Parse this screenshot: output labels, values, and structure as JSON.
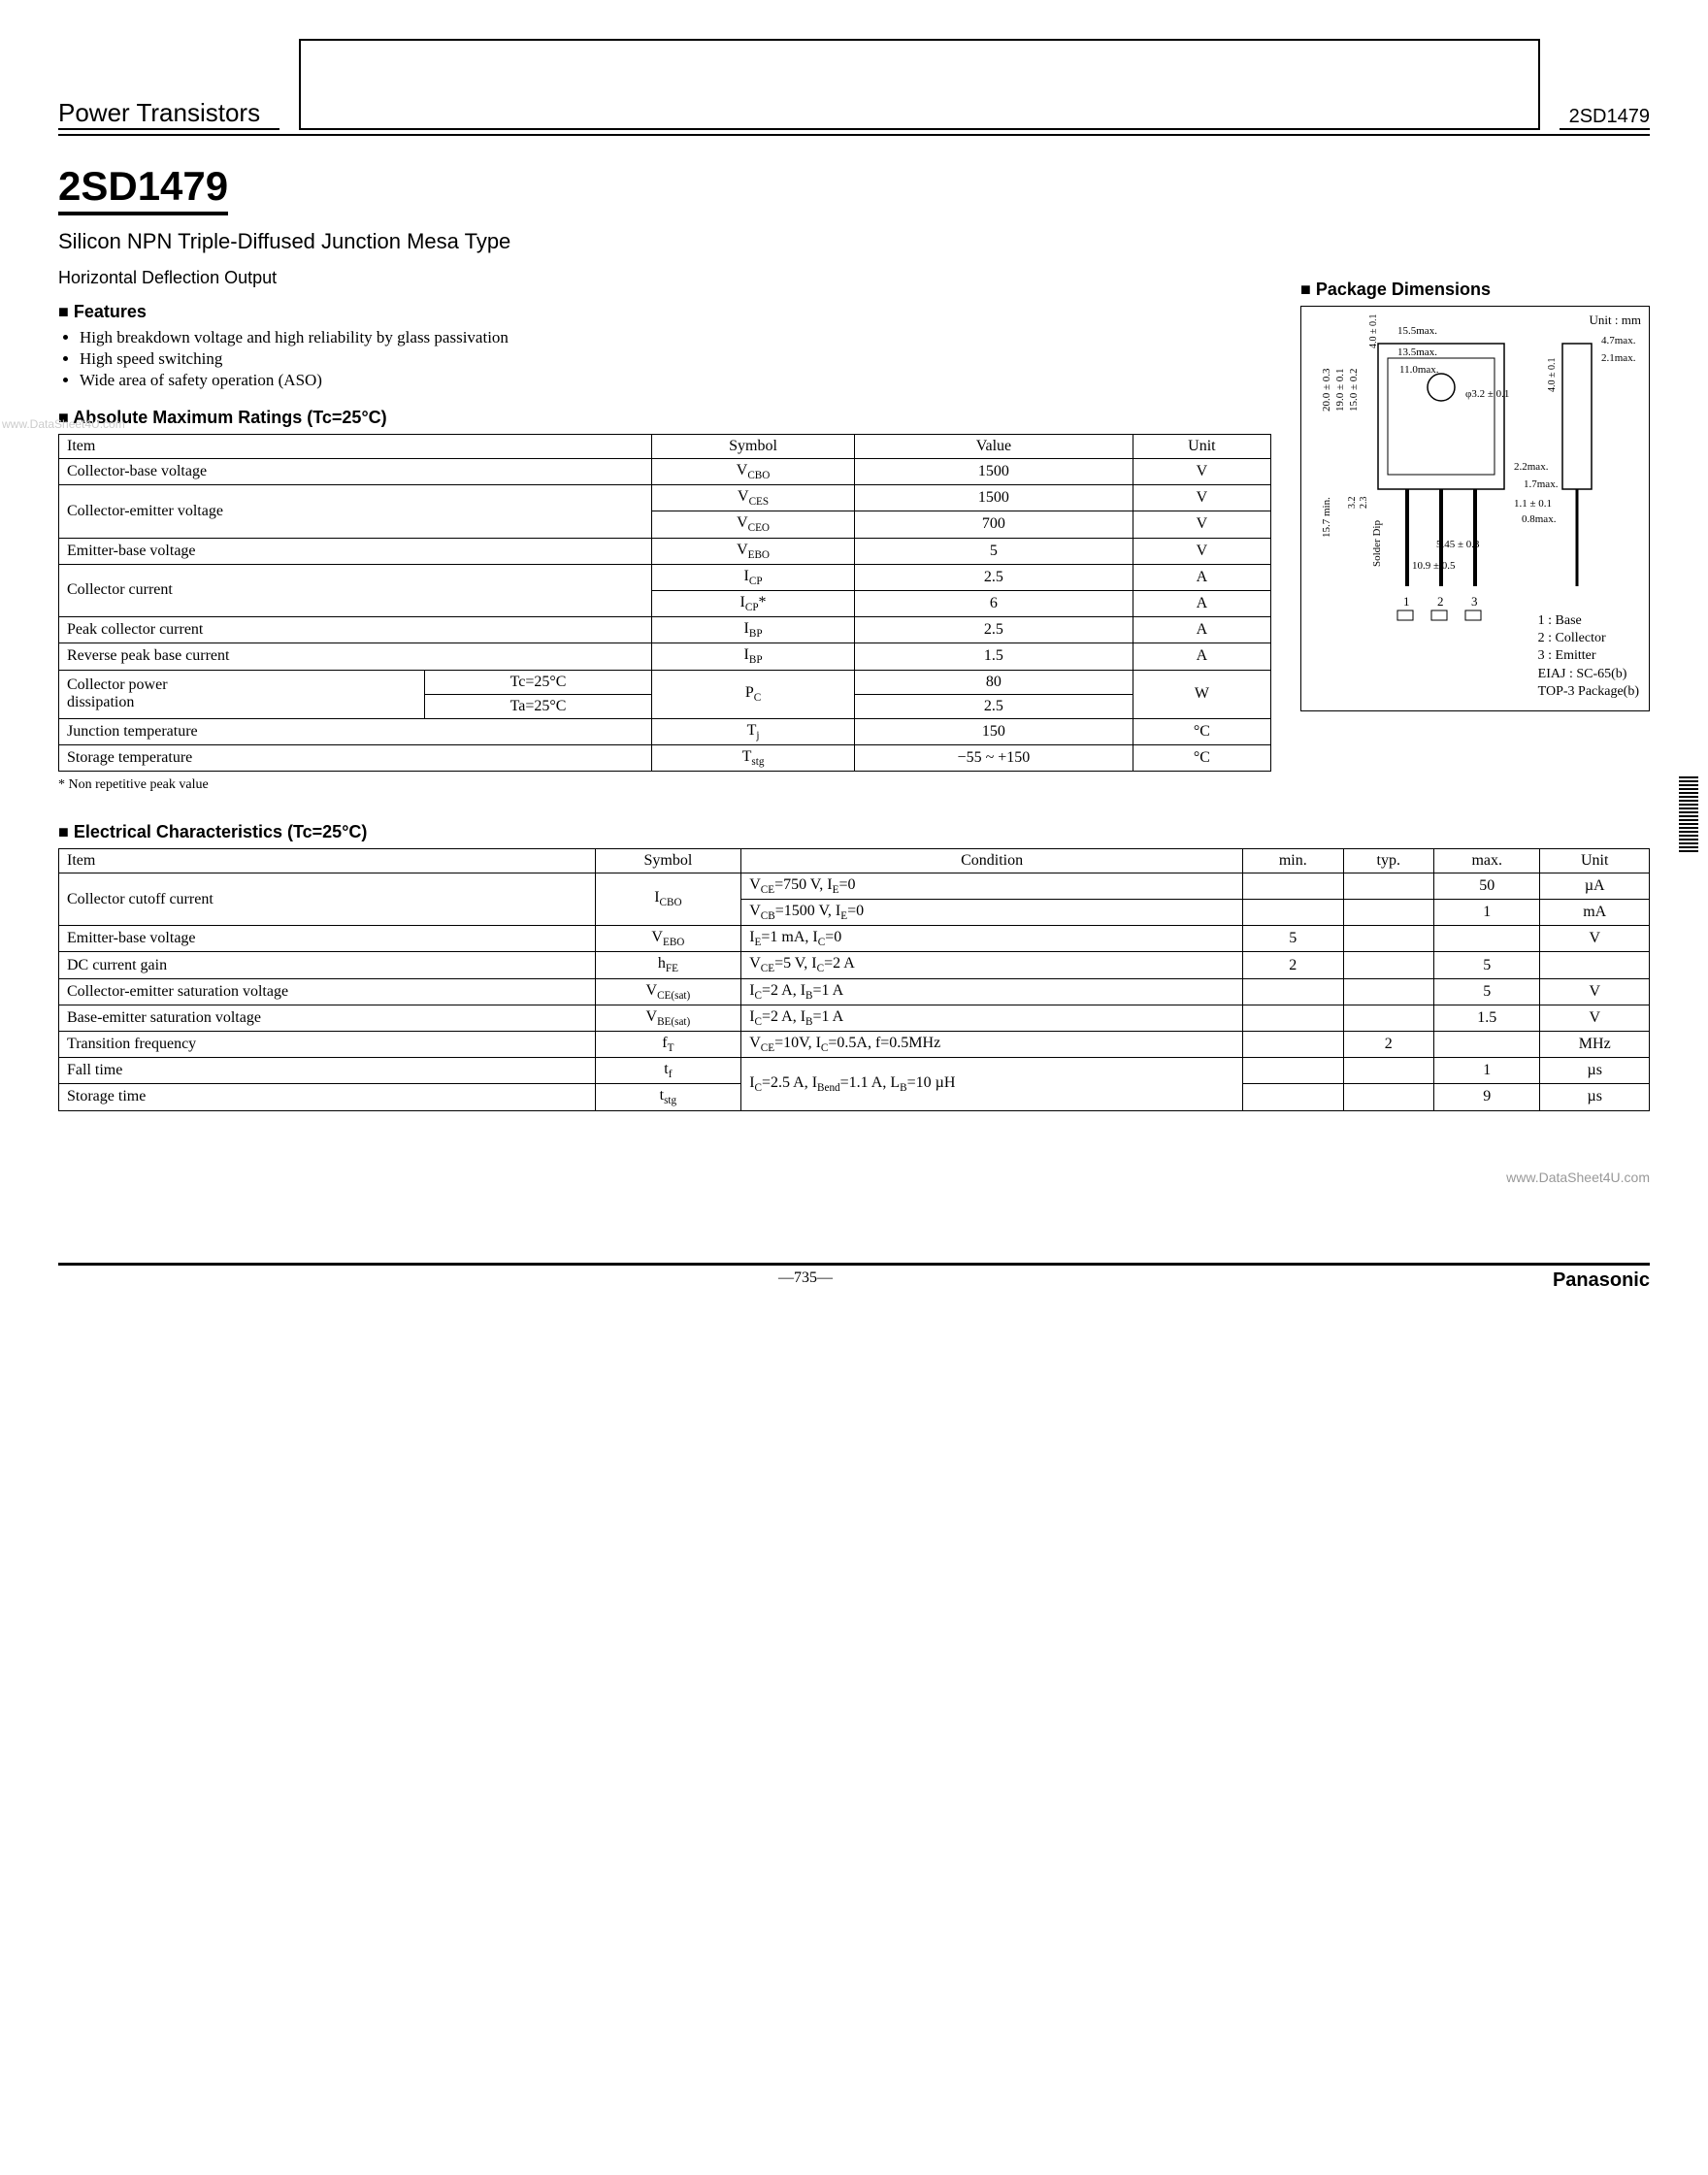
{
  "header": {
    "category": "Power Transistors",
    "part_right": "2SD1479"
  },
  "title": {
    "part_no": "2SD1479",
    "subtitle": "Silicon NPN Triple-Diffused Junction Mesa Type",
    "application": "Horizontal Deflection Output"
  },
  "features": {
    "heading": "Features",
    "items": [
      "High breakdown voltage and high reliability by glass passivation",
      "High speed switching",
      "Wide area of safety operation (ASO)"
    ]
  },
  "abs_max": {
    "heading": "Absolute Maximum Ratings (Tc=25°C)",
    "columns": [
      "Item",
      "Symbol",
      "Value",
      "Unit"
    ],
    "rows": [
      {
        "item": "Collector-base voltage",
        "symbol": "V<sub>CBO</sub>",
        "value": "1500",
        "unit": "V"
      },
      {
        "item": "Collector-emitter voltage",
        "symbol": "V<sub>CES</sub>",
        "value": "1500",
        "unit": "V"
      },
      {
        "item": "",
        "symbol": "V<sub>CEO</sub>",
        "value": "700",
        "unit": "V"
      },
      {
        "item": "Emitter-base voltage",
        "symbol": "V<sub>EBO</sub>",
        "value": "5",
        "unit": "V"
      },
      {
        "item": "Collector current",
        "symbol": "I<sub>CP</sub>",
        "value": "2.5",
        "unit": "A"
      },
      {
        "item": "",
        "symbol": "I<sub>CP</sub>*",
        "value": "6",
        "unit": "A"
      },
      {
        "item": "Peak collector current",
        "symbol": "I<sub>BP</sub>",
        "value": "2.5",
        "unit": "A"
      },
      {
        "item": "Reverse peak base current",
        "symbol": "I<sub>BP</sub>",
        "value": "1.5",
        "unit": "A"
      },
      {
        "item": "Collector power dissipation  Tc=25°C",
        "symbol": "P<sub>C</sub>",
        "value": "80",
        "unit": "W"
      },
      {
        "item": "Collector power dissipation  Ta=25°C",
        "symbol": "",
        "value": "2.5",
        "unit": ""
      },
      {
        "item": "Junction temperature",
        "symbol": "T<sub>j</sub>",
        "value": "150",
        "unit": "°C"
      },
      {
        "item": "Storage temperature",
        "symbol": "T<sub>stg</sub>",
        "value": "−55 ~ +150",
        "unit": "°C"
      }
    ],
    "footnote": "* Non repetitive peak value"
  },
  "elec": {
    "heading": "Electrical Characteristics (Tc=25°C)",
    "columns": [
      "Item",
      "Symbol",
      "Condition",
      "min.",
      "typ.",
      "max.",
      "Unit"
    ],
    "rows": [
      {
        "item": "Collector cutoff current",
        "symbol": "I<sub>CBO</sub>",
        "cond": "V<sub>CE</sub>=750 V,  I<sub>E</sub>=0",
        "min": "",
        "typ": "",
        "max": "50",
        "unit": "µA"
      },
      {
        "item": "",
        "symbol": "",
        "cond": "V<sub>CB</sub>=1500 V,  I<sub>E</sub>=0",
        "min": "",
        "typ": "",
        "max": "1",
        "unit": "mA"
      },
      {
        "item": "Emitter-base voltage",
        "symbol": "V<sub>EBO</sub>",
        "cond": "I<sub>E</sub>=1 mA,  I<sub>C</sub>=0",
        "min": "5",
        "typ": "",
        "max": "",
        "unit": "V"
      },
      {
        "item": "DC current gain",
        "symbol": "h<sub>FE</sub>",
        "cond": "V<sub>CE</sub>=5 V,  I<sub>C</sub>=2 A",
        "min": "2",
        "typ": "",
        "max": "5",
        "unit": ""
      },
      {
        "item": "Collector-emitter saturation voltage",
        "symbol": "V<sub>CE(sat)</sub>",
        "cond": "I<sub>C</sub>=2 A,  I<sub>B</sub>=1 A",
        "min": "",
        "typ": "",
        "max": "5",
        "unit": "V"
      },
      {
        "item": "Base-emitter saturation voltage",
        "symbol": "V<sub>BE(sat)</sub>",
        "cond": "I<sub>C</sub>=2 A,  I<sub>B</sub>=1 A",
        "min": "",
        "typ": "",
        "max": "1.5",
        "unit": "V"
      },
      {
        "item": "Transition frequency",
        "symbol": "f<sub>T</sub>",
        "cond": "V<sub>CE</sub>=10V, I<sub>C</sub>=0.5A, f=0.5MHz",
        "min": "",
        "typ": "2",
        "max": "",
        "unit": "MHz"
      },
      {
        "item": "Fall time",
        "symbol": "t<sub>f</sub>",
        "cond": "I<sub>C</sub>=2.5 A,  I<sub>Bend</sub>=1.1 A,  L<sub>B</sub>=10 µH",
        "min": "",
        "typ": "",
        "max": "1",
        "unit": "µs"
      },
      {
        "item": "Storage time",
        "symbol": "t<sub>stg</sub>",
        "cond": "",
        "min": "",
        "typ": "",
        "max": "9",
        "unit": "µs"
      }
    ]
  },
  "package": {
    "heading": "Package Dimensions",
    "unit_label": "Unit : mm",
    "dims": {
      "w_top": "15.5max.",
      "w_mid": "13.5max.",
      "w_body": "11.0max.",
      "h_total": "20.0 ± 0.3",
      "h_inner1": "19.0 ± 0.1",
      "h_inner2": "15.0 ± 0.2",
      "h_lead_area": "15.7 min.",
      "h_step1": "3.2",
      "h_step2": "2.3",
      "hole": "φ3.2 ± 0.1",
      "tol_top": "4.0 ± 0.1",
      "side_d1": "4.7max.",
      "side_d2": "2.1max.",
      "side_tol": "4.0 ± 0.1",
      "lead_t1": "2.2max.",
      "lead_t2": "1.7max.",
      "lead_w1": "1.1 ± 0.1",
      "lead_w2": "0.8max.",
      "pitch": "5.45 ± 0.3",
      "span": "10.9 ± 0.5",
      "solder_dip": "Solder Dip"
    },
    "pins": [
      "1",
      "2",
      "3"
    ],
    "pin_names": [
      "1 : Base",
      "2 : Collector",
      "3 : Emitter"
    ],
    "pkg_codes": [
      "EIAJ : SC-65(b)",
      "TOP-3 Package(b)"
    ]
  },
  "footer": {
    "watermark": "www.DataSheet4U.com",
    "left_wm": "www.DataSheet4U.com",
    "page": "—735—",
    "brand": "Panasonic"
  }
}
